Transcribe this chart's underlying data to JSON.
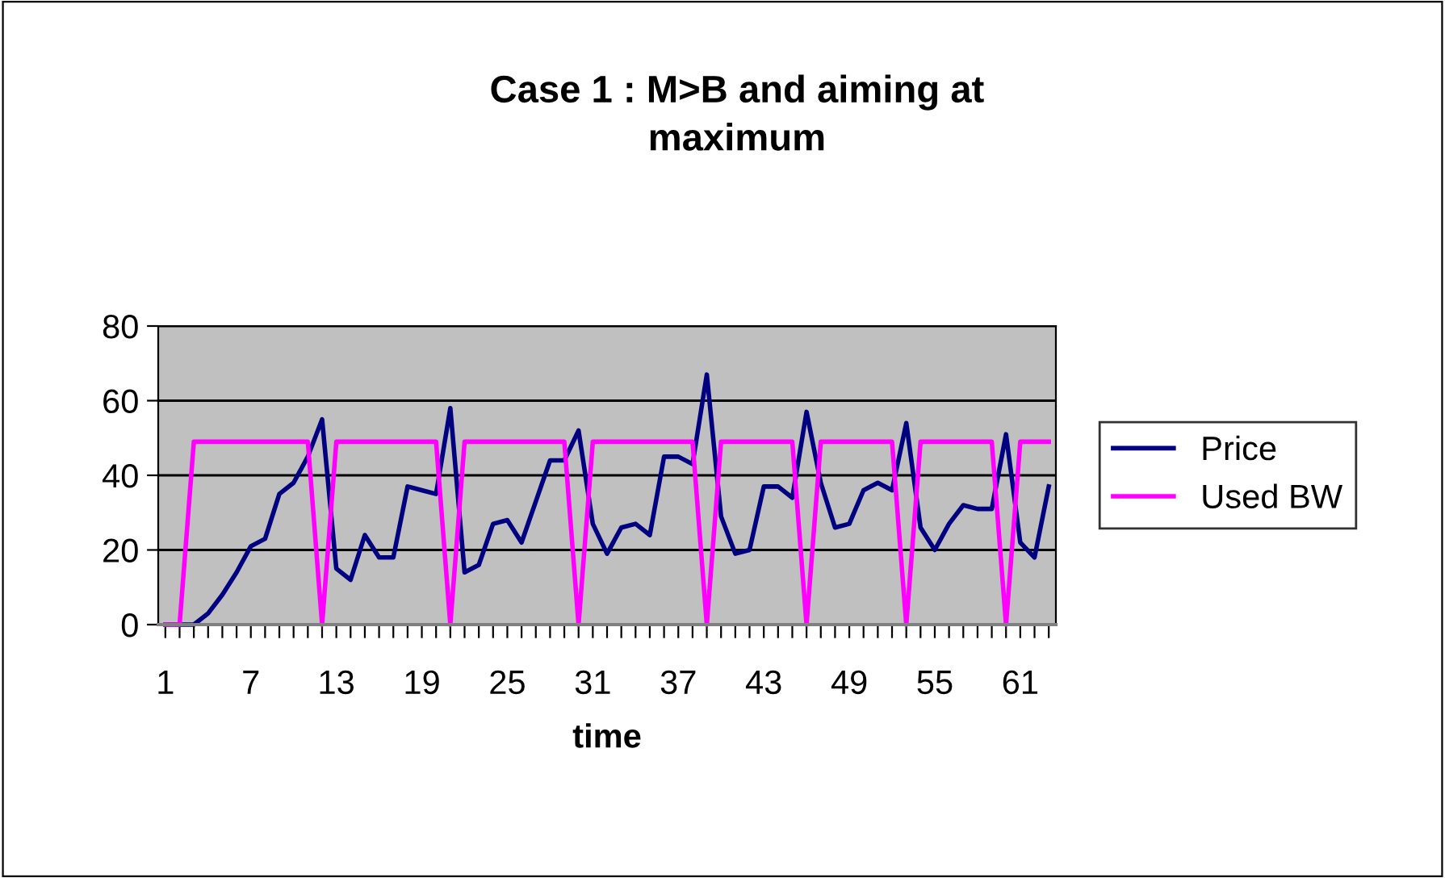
{
  "chart_data": {
    "type": "line",
    "title": "Case 1 : M>B and aiming at\nmaximum",
    "xlabel": "time",
    "categories": [
      "1",
      null,
      null,
      null,
      null,
      null,
      "7",
      null,
      null,
      null,
      null,
      null,
      "13",
      null,
      null,
      null,
      null,
      null,
      "19",
      null,
      null,
      null,
      null,
      null,
      "25",
      null,
      null,
      null,
      null,
      null,
      "31",
      null,
      null,
      null,
      null,
      null,
      "37",
      null,
      null,
      null,
      null,
      null,
      "43",
      null,
      null,
      null,
      null,
      null,
      "49",
      null,
      null,
      null,
      null,
      null,
      "55",
      null,
      null,
      null,
      null,
      null,
      "61",
      null,
      null
    ],
    "series": [
      {
        "name": "Price",
        "color": "#000080",
        "values": [
          0,
          0,
          0,
          3,
          8,
          14,
          21,
          23,
          35,
          38,
          45,
          55,
          15,
          12,
          24,
          18,
          18,
          37,
          36,
          35,
          58,
          14,
          16,
          27,
          28,
          22,
          33,
          44,
          44,
          52,
          27,
          19,
          26,
          27,
          24,
          45,
          45,
          43,
          67,
          29,
          19,
          20,
          37,
          37,
          34,
          57,
          38,
          26,
          27,
          36,
          38,
          36,
          54,
          26,
          20,
          27,
          32,
          31,
          31,
          51,
          22,
          18,
          37
        ]
      },
      {
        "name": "Used BW",
        "color": "#ff00ff",
        "values": [
          0,
          0,
          49,
          49,
          49,
          49,
          49,
          49,
          49,
          49,
          49,
          0,
          49,
          49,
          49,
          49,
          49,
          49,
          49,
          49,
          0,
          49,
          49,
          49,
          49,
          49,
          49,
          49,
          49,
          0,
          49,
          49,
          49,
          49,
          49,
          49,
          49,
          49,
          0,
          49,
          49,
          49,
          49,
          49,
          49,
          0,
          49,
          49,
          49,
          49,
          49,
          49,
          0,
          49,
          49,
          49,
          49,
          49,
          49,
          0,
          49,
          49,
          49
        ]
      }
    ],
    "ylim": [
      0,
      80
    ],
    "yticks": [
      0,
      20,
      40,
      60,
      80
    ],
    "grid": "y",
    "legend": "right",
    "marker": "none",
    "line_style": "solid"
  }
}
